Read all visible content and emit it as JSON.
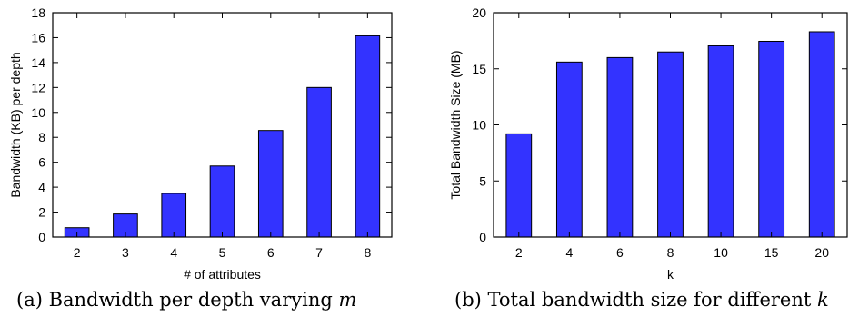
{
  "chart_data": [
    {
      "type": "bar",
      "categories": [
        "2",
        "3",
        "4",
        "5",
        "6",
        "7",
        "8"
      ],
      "values": [
        0.75,
        1.85,
        3.5,
        5.7,
        8.55,
        12.0,
        16.15
      ],
      "xlabel": "# of attributes",
      "ylabel": "Bandwidth (KB) per depth",
      "ylim": [
        0,
        18
      ],
      "yticks": [
        0,
        2,
        4,
        6,
        8,
        10,
        12,
        14,
        16,
        18
      ],
      "bar_color": "#3333ff",
      "grid": false,
      "caption_prefix": "(a) Bandwidth per depth varying ",
      "caption_var": "m"
    },
    {
      "type": "bar",
      "categories": [
        "2",
        "4",
        "6",
        "8",
        "10",
        "15",
        "20"
      ],
      "values": [
        9.2,
        15.6,
        16.0,
        16.5,
        17.05,
        17.45,
        18.3
      ],
      "xlabel": "k",
      "ylabel": "Total Bandwidth Size (MB)",
      "ylim": [
        0,
        20
      ],
      "yticks": [
        0,
        5,
        10,
        15,
        20
      ],
      "bar_color": "#3333ff",
      "grid": false,
      "caption_prefix": "(b) Total bandwidth size for different ",
      "caption_var": "k"
    }
  ]
}
